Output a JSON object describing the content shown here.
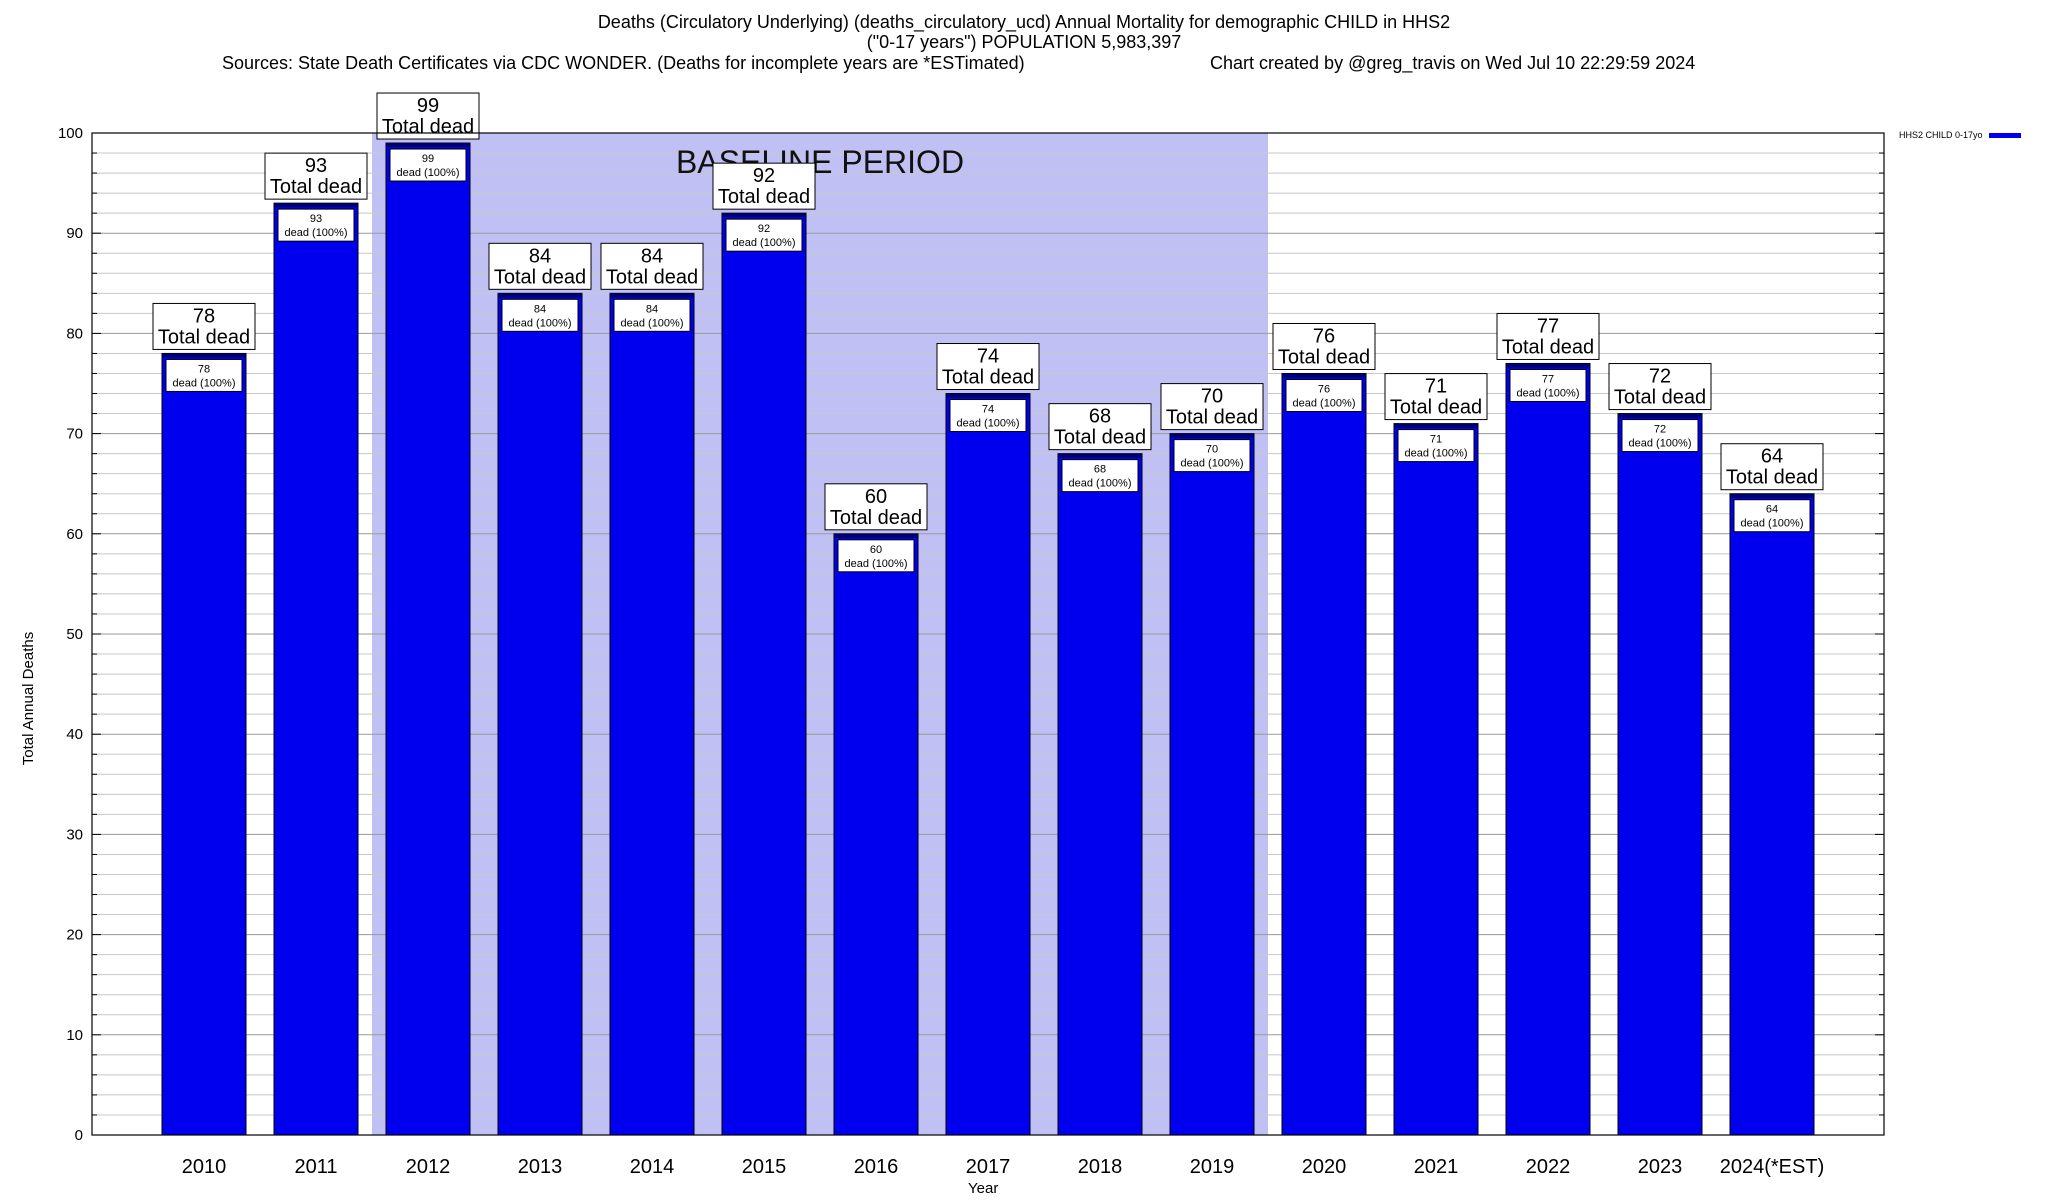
{
  "title": {
    "line1": "Deaths (Circulatory Underlying) (deaths_circulatory_ucd) Annual Mortality for demographic CHILD in HHS2",
    "line2": "(\"0-17 years\") POPULATION 5,983,397",
    "line3": "Sources: State Death Certificates via CDC WONDER. (Deaths for incomplete years are *ESTimated)",
    "line4": "Chart created by @greg_travis on Wed Jul 10 22:29:59 2024"
  },
  "chart_data": {
    "type": "bar",
    "xlabel": "Year",
    "ylabel": "Total Annual Deaths",
    "ylim": [
      0,
      100
    ],
    "y_ticks": [
      0,
      10,
      20,
      30,
      40,
      50,
      60,
      70,
      80,
      90,
      100
    ],
    "grid": "horizontal",
    "legend_position": "top-right",
    "categories": [
      "2010",
      "2011",
      "2012",
      "2013",
      "2014",
      "2015",
      "2016",
      "2017",
      "2018",
      "2019",
      "2020",
      "2021",
      "2022",
      "2023",
      "2024(*EST)"
    ],
    "series": [
      {
        "name": "HHS2 CHILD 0-17yo",
        "color": "#0000ee",
        "values": [
          78,
          93,
          99,
          84,
          84,
          92,
          60,
          74,
          68,
          70,
          76,
          71,
          77,
          72,
          64
        ]
      }
    ],
    "outer_label_suffix": "Total dead",
    "inner_label_suffix": "dead (100%)",
    "baseline_period": {
      "label": "BASELINE PERIOD",
      "start": "2012",
      "end": "2019",
      "color": "#c0c0f4"
    }
  }
}
